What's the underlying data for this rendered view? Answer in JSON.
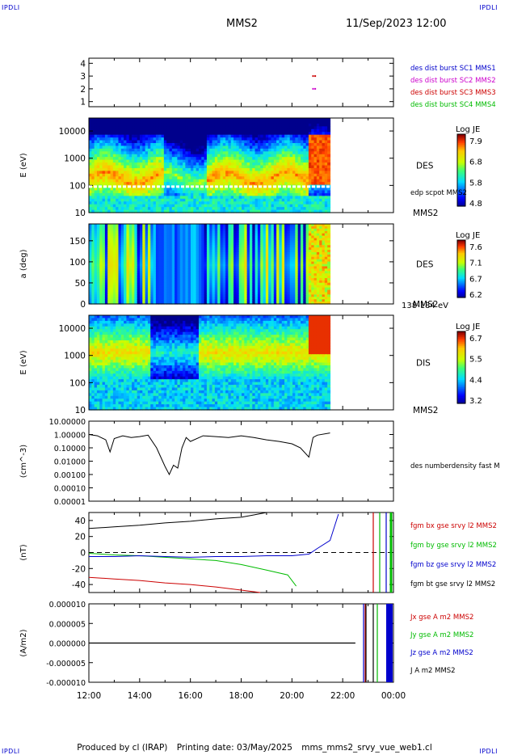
{
  "corners": {
    "tl": "IPDLI",
    "tr": "IPDLI",
    "bl": "IPDLI",
    "br": "IPDLI"
  },
  "header": {
    "mission": "MMS2",
    "datetime": "11/Sep/2023 12:00"
  },
  "footer": {
    "produced": "Produced by cl (IRAP)",
    "printing": "Printing date: 03/May/2025",
    "file": "mms_mms2_srvy_vue_web1.cl"
  },
  "colors": {
    "blue": "#0000cc",
    "magenta": "#cc00cc",
    "red": "#cc0000",
    "green": "#00bb00",
    "black": "#000000"
  },
  "chart_data": [
    {
      "type": "scatter",
      "panel": "burst",
      "ylim": [
        1,
        4
      ],
      "yticks": [
        "4",
        "3",
        "2",
        "1"
      ],
      "legend": [
        {
          "label": "des dist burst SC1 MMS1",
          "color": "#0000cc"
        },
        {
          "label": "des dist burst SC2 MMS2",
          "color": "#cc00cc"
        },
        {
          "label": "des dist burst SC3 MMS3",
          "color": "#cc0000"
        },
        {
          "label": "des dist burst SC4 MMS4",
          "color": "#00bb00"
        }
      ],
      "points": [
        {
          "x": "20:50",
          "y": 3
        },
        {
          "x": "20:55",
          "y": 3
        },
        {
          "x": "20:50",
          "y": 2
        },
        {
          "x": "20:55",
          "y": 2
        }
      ]
    },
    {
      "type": "heatmap",
      "panel": "des-energy",
      "ylabel": "E (eV)",
      "yscale": "log",
      "ylim": [
        10,
        30000
      ],
      "yticks": [
        "10000",
        "1000",
        "100",
        "10"
      ],
      "label": "DES",
      "sublabel": "MMS2",
      "overlay": "edp scpot MMS2",
      "overlay_level_eV": 90,
      "colorbar": {
        "title": "Log JE",
        "ticks": [
          "7.9",
          "6.8",
          "5.8",
          "4.8"
        ]
      },
      "data_end": "21:30"
    },
    {
      "type": "heatmap",
      "panel": "des-pitch",
      "ylabel": "a (deg)",
      "ylim": [
        0,
        180
      ],
      "yticks": [
        "150",
        "100",
        "50",
        "0"
      ],
      "label": "DES",
      "sublabel": "MMS2",
      "energy_range": "138-184 eV",
      "colorbar": {
        "title": "Log JE",
        "ticks": [
          "7.6",
          "7.1",
          "6.7",
          "6.2"
        ]
      },
      "data_end": "21:30"
    },
    {
      "type": "heatmap",
      "panel": "dis-energy",
      "ylabel": "E (eV)",
      "yscale": "log",
      "ylim": [
        10,
        30000
      ],
      "yticks": [
        "10000",
        "1000",
        "100",
        "10"
      ],
      "label": "DIS",
      "sublabel": "MMS2",
      "colorbar": {
        "title": "Log JE",
        "ticks": [
          "6.7",
          "5.5",
          "4.4",
          "3.2"
        ]
      },
      "data_end": "21:30"
    },
    {
      "type": "line",
      "panel": "density",
      "ylabel": "(cm^-3)",
      "yscale": "log",
      "ylim": [
        1e-05,
        10
      ],
      "yticks": [
        "10.00000",
        "1.00000",
        "0.10000",
        "0.01000",
        "0.00100",
        "0.00010",
        "0.00001"
      ],
      "series": [
        {
          "name": "des numberdensity fast M",
          "color": "#000000",
          "x": [
            "12:00",
            "12:20",
            "12:40",
            "12:50",
            "13:00",
            "13:20",
            "13:40",
            "14:00",
            "14:20",
            "14:40",
            "14:50",
            "15:00",
            "15:10",
            "15:20",
            "15:30",
            "15:40",
            "15:50",
            "16:00",
            "16:30",
            "17:00",
            "17:30",
            "18:00",
            "18:30",
            "19:00",
            "19:30",
            "20:00",
            "20:20",
            "20:40",
            "20:50",
            "21:00",
            "21:30"
          ],
          "y": [
            1.0,
            0.8,
            0.4,
            0.05,
            0.5,
            0.8,
            0.6,
            0.7,
            0.9,
            0.1,
            0.02,
            0.004,
            0.001,
            0.005,
            0.003,
            0.1,
            0.6,
            0.3,
            0.8,
            0.7,
            0.6,
            0.8,
            0.6,
            0.4,
            0.3,
            0.2,
            0.1,
            0.02,
            0.6,
            0.9,
            1.3
          ]
        }
      ]
    },
    {
      "type": "line",
      "panel": "fgm",
      "ylabel": "(nT)",
      "ylim": [
        -50,
        50
      ],
      "yticks": [
        "40",
        "20",
        "0",
        "-20",
        "-40"
      ],
      "zero_line": true,
      "series": [
        {
          "name": "fgm bx gse srvy l2 MMS2",
          "color": "#cc0000",
          "x": [
            "12:00",
            "13:00",
            "14:00",
            "15:00",
            "16:00",
            "17:00",
            "18:00",
            "18:45"
          ],
          "y": [
            -31,
            -33,
            -35,
            -38,
            -40,
            -43,
            -47,
            -52
          ]
        },
        {
          "name": "fgm by gse srvy l2 MMS2",
          "color": "#00bb00",
          "x": [
            "12:00",
            "13:00",
            "14:00",
            "15:00",
            "16:00",
            "17:00",
            "18:00",
            "19:00",
            "19:50",
            "20:10"
          ],
          "y": [
            -1,
            -3,
            -4,
            -6,
            -8,
            -10,
            -15,
            -22,
            -28,
            -42
          ]
        },
        {
          "name": "fgm bz gse srvy l2 MMS2",
          "color": "#0000cc",
          "x": [
            "12:00",
            "13:00",
            "14:00",
            "15:00",
            "16:00",
            "17:00",
            "18:00",
            "19:00",
            "20:00",
            "20:40",
            "21:00",
            "21:30",
            "21:50"
          ],
          "y": [
            -5,
            -5,
            -4,
            -5,
            -6,
            -5,
            -5,
            -4,
            -4,
            -2,
            5,
            15,
            48
          ]
        },
        {
          "name": "fgm bt gse srvy l2 MMS2",
          "color": "#000000",
          "x": [
            "12:00",
            "13:00",
            "14:00",
            "15:00",
            "16:00",
            "17:00",
            "18:00",
            "18:30",
            "19:00"
          ],
          "y": [
            30,
            32,
            34,
            37,
            39,
            42,
            44,
            47,
            52
          ]
        }
      ]
    },
    {
      "type": "line",
      "panel": "current",
      "ylabel": "(A/m2)",
      "ylim": [
        -1e-05,
        1e-05
      ],
      "yticks": [
        "0.000010",
        "0.000005",
        "0.000000",
        "-0.000005",
        "-0.000010"
      ],
      "series": [
        {
          "name": "Jx gse A m2 MMS2",
          "color": "#cc0000"
        },
        {
          "name": "Jy gse A m2 MMS2",
          "color": "#00bb00"
        },
        {
          "name": "Jz gse A m2 MMS2",
          "color": "#0000cc"
        },
        {
          "name": "J A m2 MMS2",
          "color": "#000000"
        }
      ],
      "value_until_2230": 0.0
    }
  ],
  "xaxis": {
    "ticks": [
      "12:00",
      "14:00",
      "16:00",
      "18:00",
      "20:00",
      "22:00",
      "00:00"
    ]
  }
}
